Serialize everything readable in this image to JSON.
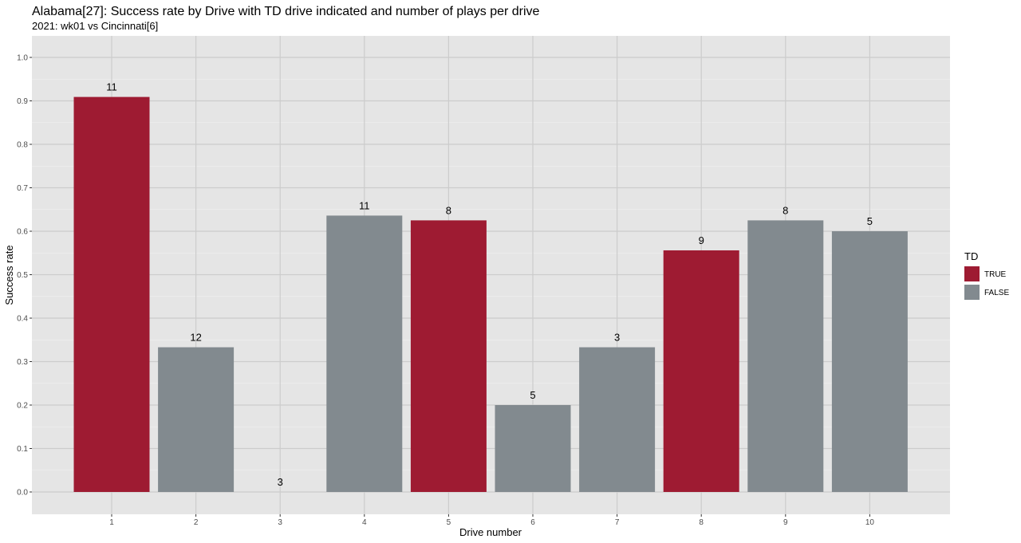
{
  "chart_data": {
    "type": "bar",
    "title": "Alabama[27]: Success rate by Drive with TD drive indicated and number of plays per drive",
    "subtitle": "2021: wk01 vs Cincinnati[6]",
    "xlabel": "Drive number",
    "ylabel": "Success rate",
    "ylim": [
      0,
      1.0
    ],
    "y_ticks": [
      "0.0",
      "0.1",
      "0.2",
      "0.3",
      "0.4",
      "0.5",
      "0.6",
      "0.7",
      "0.8",
      "0.9",
      "1.0"
    ],
    "categories": [
      "1",
      "2",
      "3",
      "4",
      "5",
      "6",
      "7",
      "8",
      "9",
      "10"
    ],
    "values": [
      0.909,
      0.333,
      0.0,
      0.636,
      0.625,
      0.2,
      0.333,
      0.556,
      0.625,
      0.6
    ],
    "td": [
      true,
      false,
      false,
      false,
      true,
      false,
      false,
      true,
      false,
      false
    ],
    "plays": [
      "11",
      "12",
      "3",
      "11",
      "8",
      "5",
      "3",
      "9",
      "8",
      "5"
    ],
    "grid": true,
    "legend": {
      "title": "TD",
      "placement": "right",
      "entries": [
        {
          "label": "TRUE",
          "color": "#9e1b32"
        },
        {
          "label": "FALSE",
          "color": "#828a8f"
        }
      ]
    },
    "colors": {
      "true": "#9e1b32",
      "false": "#828a8f",
      "panel": "#e5e5e5",
      "grid_major": "#ffffff",
      "grid_minor": "#f2f2f2",
      "grid_vertical": "#cccccc"
    }
  }
}
